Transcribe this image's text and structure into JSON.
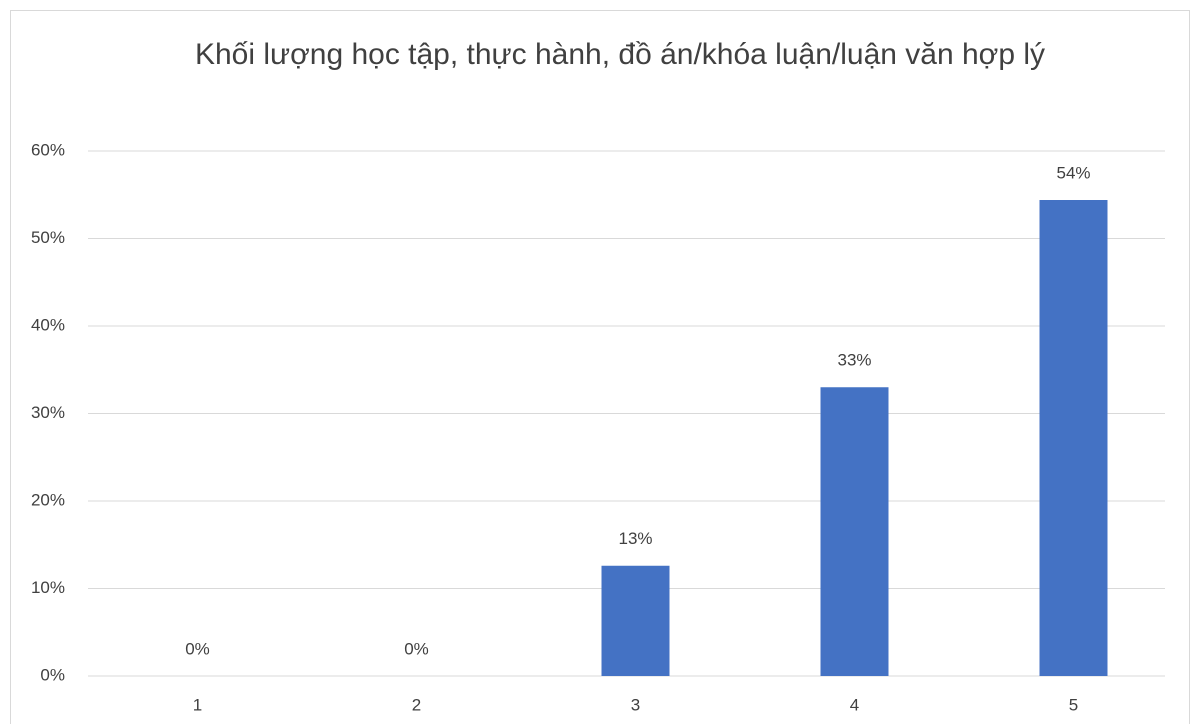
{
  "chart_data": {
    "type": "bar",
    "title": "Khối lượng học tập, thực hành, đồ án/khóa luận/luận văn hợp lý",
    "categories": [
      "1",
      "2",
      "3",
      "4",
      "5"
    ],
    "values": [
      0,
      0,
      12.6,
      33,
      54.4
    ],
    "value_labels": [
      "0%",
      "0%",
      "13%",
      "33%",
      "54%"
    ],
    "color": "#4472c4",
    "ylim": [
      0,
      60
    ],
    "yticks": [
      {
        "value": 0,
        "label": "0%"
      },
      {
        "value": 10,
        "label": "10%"
      },
      {
        "value": 20,
        "label": "20%"
      },
      {
        "value": 30,
        "label": "30%"
      },
      {
        "value": 40,
        "label": "40%"
      },
      {
        "value": 50,
        "label": "50%"
      },
      {
        "value": 60,
        "label": "60%"
      }
    ],
    "grid": true
  }
}
